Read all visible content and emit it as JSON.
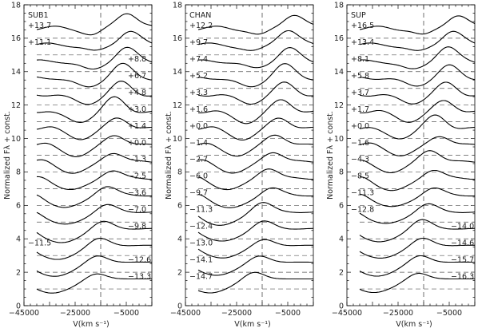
{
  "chart_data": [
    {
      "type": "line",
      "title": "SUB1",
      "xlabel": "V(km s⁻¹)",
      "ylabel": "Normalized Fλ + const.",
      "xlim": [
        -45000,
        5000
      ],
      "ylim": [
        0,
        18
      ],
      "x_ticks": [
        -45000,
        -25000,
        -5000
      ],
      "x_tick_labels": [
        "−45000",
        "−25000",
        "−5000"
      ],
      "y_ticks": [
        0,
        2,
        4,
        6,
        8,
        10,
        12,
        14,
        16,
        18
      ],
      "vertical_dashed_line_x": -15000,
      "series": [
        {
          "name": "+13.7",
          "offset": 16
        },
        {
          "name": "+11.1",
          "offset": 15
        },
        {
          "name": "+8.8",
          "offset": 14
        },
        {
          "name": "+6.7",
          "offset": 13
        },
        {
          "name": "+4.8",
          "offset": 12
        },
        {
          "name": "+3.0",
          "offset": 11
        },
        {
          "name": "+1.4",
          "offset": 10
        },
        {
          "name": "+0.0",
          "offset": 9
        },
        {
          "name": "−1.3",
          "offset": 8
        },
        {
          "name": "−2.5",
          "offset": 7
        },
        {
          "name": "−3.6",
          "offset": 6
        },
        {
          "name": "−7.0",
          "offset": 5
        },
        {
          "name": "−9.8",
          "offset": 4
        },
        {
          "name": "−11.5",
          "offset": 3
        },
        {
          "name": "−12.6",
          "offset": 2
        },
        {
          "name": "−13.3",
          "offset": 1
        }
      ]
    },
    {
      "type": "line",
      "title": "CHAN",
      "xlabel": "V(km s⁻¹)",
      "ylabel": "Normalized Fλ + const.",
      "xlim": [
        -45000,
        5000
      ],
      "ylim": [
        0,
        18
      ],
      "x_ticks": [
        -45000,
        -25000,
        -5000
      ],
      "x_tick_labels": [
        "−45000",
        "−25000",
        "−5000"
      ],
      "y_ticks": [
        0,
        2,
        4,
        6,
        8,
        10,
        12,
        14,
        16,
        18
      ],
      "vertical_dashed_line_x": -15000,
      "series": [
        {
          "name": "+12.2",
          "offset": 16
        },
        {
          "name": "+9.7",
          "offset": 15
        },
        {
          "name": "+7.4",
          "offset": 14
        },
        {
          "name": "+5.2",
          "offset": 13
        },
        {
          "name": "+3.3",
          "offset": 12
        },
        {
          "name": "+1.6",
          "offset": 11
        },
        {
          "name": "+0.0",
          "offset": 10
        },
        {
          "name": "−1.4",
          "offset": 9
        },
        {
          "name": "−2.7",
          "offset": 8
        },
        {
          "name": "−6.0",
          "offset": 7
        },
        {
          "name": "−9.7",
          "offset": 6
        },
        {
          "name": "−11.3",
          "offset": 5
        },
        {
          "name": "−12.4",
          "offset": 4
        },
        {
          "name": "−13.0",
          "offset": 3
        },
        {
          "name": "−14.1",
          "offset": 2
        },
        {
          "name": "−14.7",
          "offset": 1
        }
      ]
    },
    {
      "type": "line",
      "title": "SUP",
      "xlabel": "V(km s⁻¹)",
      "ylabel": "Normalized Fλ + const.",
      "xlim": [
        -45000,
        5000
      ],
      "ylim": [
        0,
        18
      ],
      "x_ticks": [
        -45000,
        -25000,
        -5000
      ],
      "x_tick_labels": [
        "−45000",
        "−25000",
        "−5000"
      ],
      "y_ticks": [
        0,
        2,
        4,
        6,
        8,
        10,
        12,
        14,
        16,
        18
      ],
      "vertical_dashed_line_x": -15000,
      "series": [
        {
          "name": "+16.5",
          "offset": 16
        },
        {
          "name": "+13.4",
          "offset": 15
        },
        {
          "name": "+8.1",
          "offset": 14
        },
        {
          "name": "+5.8",
          "offset": 13
        },
        {
          "name": "+3.7",
          "offset": 12
        },
        {
          "name": "+1.7",
          "offset": 11
        },
        {
          "name": "+0.0",
          "offset": 10
        },
        {
          "name": "−1.6",
          "offset": 9
        },
        {
          "name": "−4.3",
          "offset": 8
        },
        {
          "name": "−8.5",
          "offset": 7
        },
        {
          "name": "−11.3",
          "offset": 6
        },
        {
          "name": "−12.8",
          "offset": 5
        },
        {
          "name": "−14.0",
          "offset": 4
        },
        {
          "name": "−14.6",
          "offset": 3
        },
        {
          "name": "−15.7",
          "offset": 2
        },
        {
          "name": "−16.3",
          "offset": 1
        }
      ]
    }
  ]
}
